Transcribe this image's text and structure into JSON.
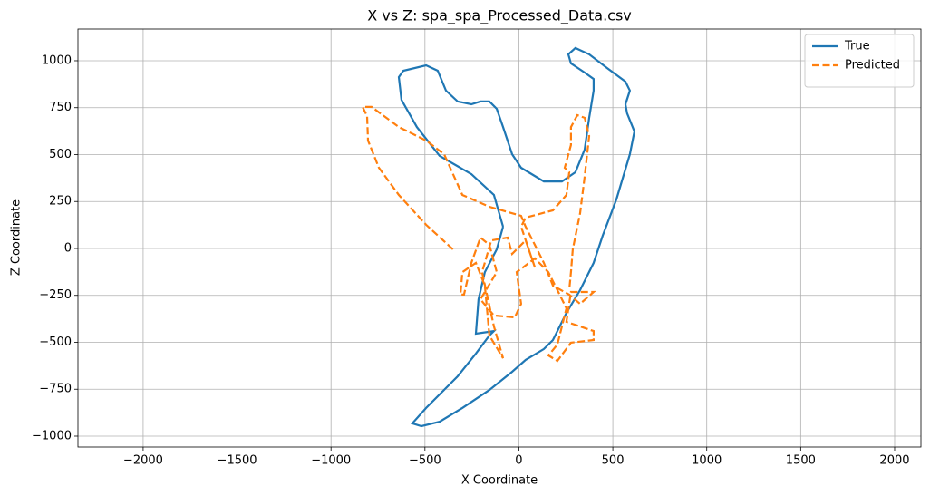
{
  "chart_data": {
    "type": "line",
    "title": "X vs Z: spa_spa_Processed_Data.csv",
    "xlabel": "X Coordinate",
    "ylabel": "Z Coordinate",
    "xlim": [
      -2347,
      2140
    ],
    "ylim": [
      -1058,
      1169
    ],
    "xticks": [
      {
        "value": -2000,
        "label": "−2000"
      },
      {
        "value": -1500,
        "label": "−1500"
      },
      {
        "value": -1000,
        "label": "−1000"
      },
      {
        "value": -500,
        "label": "−500"
      },
      0,
      500,
      1000,
      1500,
      2000
    ],
    "yticks": [
      {
        "value": -1000,
        "label": "−1000"
      },
      {
        "value": -750,
        "label": "−750"
      },
      {
        "value": -500,
        "label": "−500"
      },
      {
        "value": -250,
        "label": "−250"
      },
      0,
      250,
      500,
      750,
      1000
    ],
    "grid": true,
    "legend": "upper right",
    "series": [
      {
        "name": "True",
        "color": "#1f77b4",
        "linestyle": "solid",
        "x": [
          -84,
          -133,
          -253,
          -422,
          -543,
          -625,
          -639,
          -615,
          -494,
          -432,
          -388,
          -326,
          -253,
          -205,
          -157,
          -118,
          -84,
          -36,
          12,
          133,
          229,
          301,
          350,
          374,
          398,
          398,
          350,
          277,
          263,
          301,
          374,
          470,
          567,
          591,
          567,
          576,
          615,
          591,
          519,
          446,
          398,
          326,
          253,
          181,
          133,
          36,
          -36,
          -157,
          -301,
          -422,
          -519,
          -567,
          -494,
          -326,
          -229,
          -157,
          -133,
          -229,
          -215,
          -181,
          -118,
          -84
        ],
        "values": [
          116,
          285,
          396,
          493,
          647,
          792,
          913,
          947,
          976,
          947,
          841,
          783,
          768,
          783,
          783,
          744,
          647,
          502,
          430,
          357,
          357,
          406,
          527,
          696,
          841,
          903,
          937,
          986,
          1034,
          1068,
          1034,
          961,
          889,
          841,
          768,
          720,
          623,
          502,
          261,
          68,
          -77,
          -222,
          -343,
          -488,
          -536,
          -594,
          -657,
          -754,
          -850,
          -923,
          -947,
          -932,
          -850,
          -681,
          -560,
          -464,
          -440,
          -454,
          -271,
          -126,
          -5,
          116
        ]
      },
      {
        "name": "Predicted",
        "color": "#ff7f0e",
        "linestyle": "dashed",
        "x": [
          -351,
          -494,
          -639,
          -745,
          -803,
          -808,
          -832,
          -784,
          -639,
          -494,
          -398,
          -301,
          -157,
          12,
          36,
          85,
          133,
          181,
          268,
          326,
          398,
          277,
          253,
          398,
          398,
          277,
          205,
          157,
          205,
          253,
          157,
          85,
          -12,
          12,
          -22,
          -133,
          -205,
          -118,
          -157,
          -205,
          -253,
          -292,
          -311,
          -301,
          -229,
          -181,
          -157,
          -84,
          -133,
          -196,
          -147,
          -60,
          -36,
          36,
          85,
          12,
          36,
          181,
          253,
          268,
          244,
          277,
          277,
          311,
          350,
          374,
          350,
          326,
          287,
          277,
          268
        ],
        "values": [
          -5,
          126,
          285,
          430,
          575,
          705,
          754,
          754,
          647,
          575,
          502,
          285,
          222,
          174,
          116,
          19,
          -77,
          -198,
          -246,
          -295,
          -232,
          -232,
          -391,
          -440,
          -488,
          -502,
          -599,
          -570,
          -512,
          -319,
          -126,
          -53,
          -126,
          -295,
          -367,
          -357,
          -271,
          -126,
          19,
          58,
          -77,
          -246,
          -246,
          -126,
          -77,
          -198,
          -464,
          -585,
          -415,
          -126,
          43,
          58,
          -29,
          43,
          -101,
          116,
          164,
          203,
          285,
          406,
          430,
          551,
          647,
          710,
          696,
          599,
          382,
          188,
          -5,
          -126,
          -222
        ]
      }
    ]
  }
}
